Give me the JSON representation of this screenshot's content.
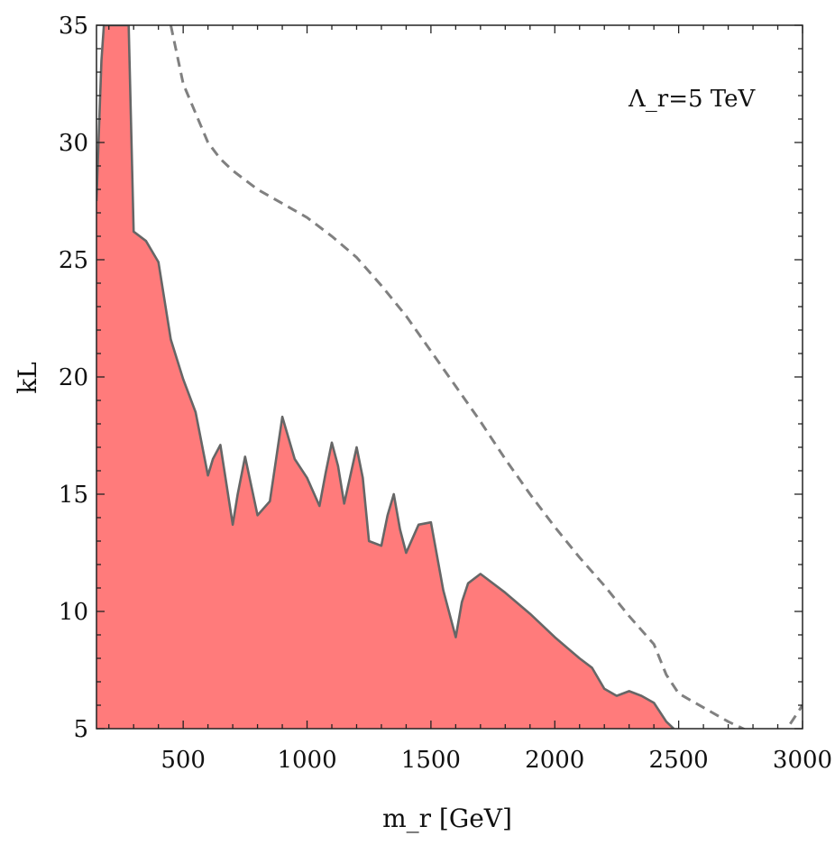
{
  "chart_data": {
    "type": "area",
    "xlabel": "m_r [GeV]",
    "ylabel": "kL",
    "xlim": [
      150,
      3000
    ],
    "ylim": [
      5,
      35
    ],
    "xticks": [
      500,
      1000,
      1500,
      2000,
      2500,
      3000
    ],
    "yticks": [
      5,
      10,
      15,
      20,
      25,
      30,
      35
    ],
    "x_minor_step": 100,
    "y_minor_step": 1,
    "grid": false,
    "annotation": "Λ_r=5 TeV",
    "colors": {
      "fill": "#ff7b7b",
      "outline": "#666666",
      "dashed": "#808080"
    },
    "series": [
      {
        "style": "filled-area",
        "x": [
          150,
          160,
          170,
          180,
          200,
          250,
          280,
          300,
          350,
          400,
          450,
          500,
          550,
          600,
          620,
          650,
          700,
          720,
          750,
          800,
          850,
          900,
          950,
          1000,
          1050,
          1075,
          1100,
          1125,
          1150,
          1200,
          1225,
          1250,
          1300,
          1325,
          1350,
          1375,
          1400,
          1450,
          1500,
          1550,
          1600,
          1625,
          1650,
          1700,
          1800,
          1900,
          2000,
          2100,
          2150,
          2200,
          2250,
          2300,
          2350,
          2400,
          2450,
          2480
        ],
        "y": [
          27.5,
          30.5,
          33.5,
          35,
          35,
          35,
          35,
          26.2,
          25.8,
          24.9,
          21.6,
          19.9,
          18.5,
          15.8,
          16.5,
          17.1,
          13.7,
          15.0,
          16.6,
          14.1,
          14.7,
          18.3,
          16.5,
          15.7,
          14.5,
          15.9,
          17.2,
          16.2,
          14.6,
          17.0,
          15.7,
          13.0,
          12.8,
          14.1,
          15.0,
          13.5,
          12.5,
          13.7,
          13.8,
          10.9,
          8.9,
          10.4,
          11.2,
          11.6,
          10.8,
          9.9,
          8.9,
          8.0,
          7.6,
          6.7,
          6.4,
          6.6,
          6.4,
          6.1,
          5.3,
          5.0
        ]
      },
      {
        "style": "dashed-line",
        "x": [
          450,
          500,
          600,
          650,
          700,
          750,
          800,
          900,
          1000,
          1100,
          1200,
          1300,
          1400,
          1500,
          1600,
          1700,
          1800,
          1900,
          2000,
          2100,
          2200,
          2300,
          2400,
          2450,
          2500,
          2600,
          2700,
          2800,
          2900,
          3000
        ],
        "y": [
          35,
          32.5,
          30.0,
          29.3,
          28.8,
          28.4,
          28.0,
          27.4,
          26.8,
          26.0,
          25.1,
          23.9,
          22.6,
          21.1,
          19.6,
          18.1,
          16.5,
          15.0,
          13.6,
          12.3,
          11.1,
          9.8,
          8.6,
          7.3,
          6.5,
          5.9,
          5.3,
          4.8,
          4.4,
          6.0
        ]
      }
    ]
  }
}
